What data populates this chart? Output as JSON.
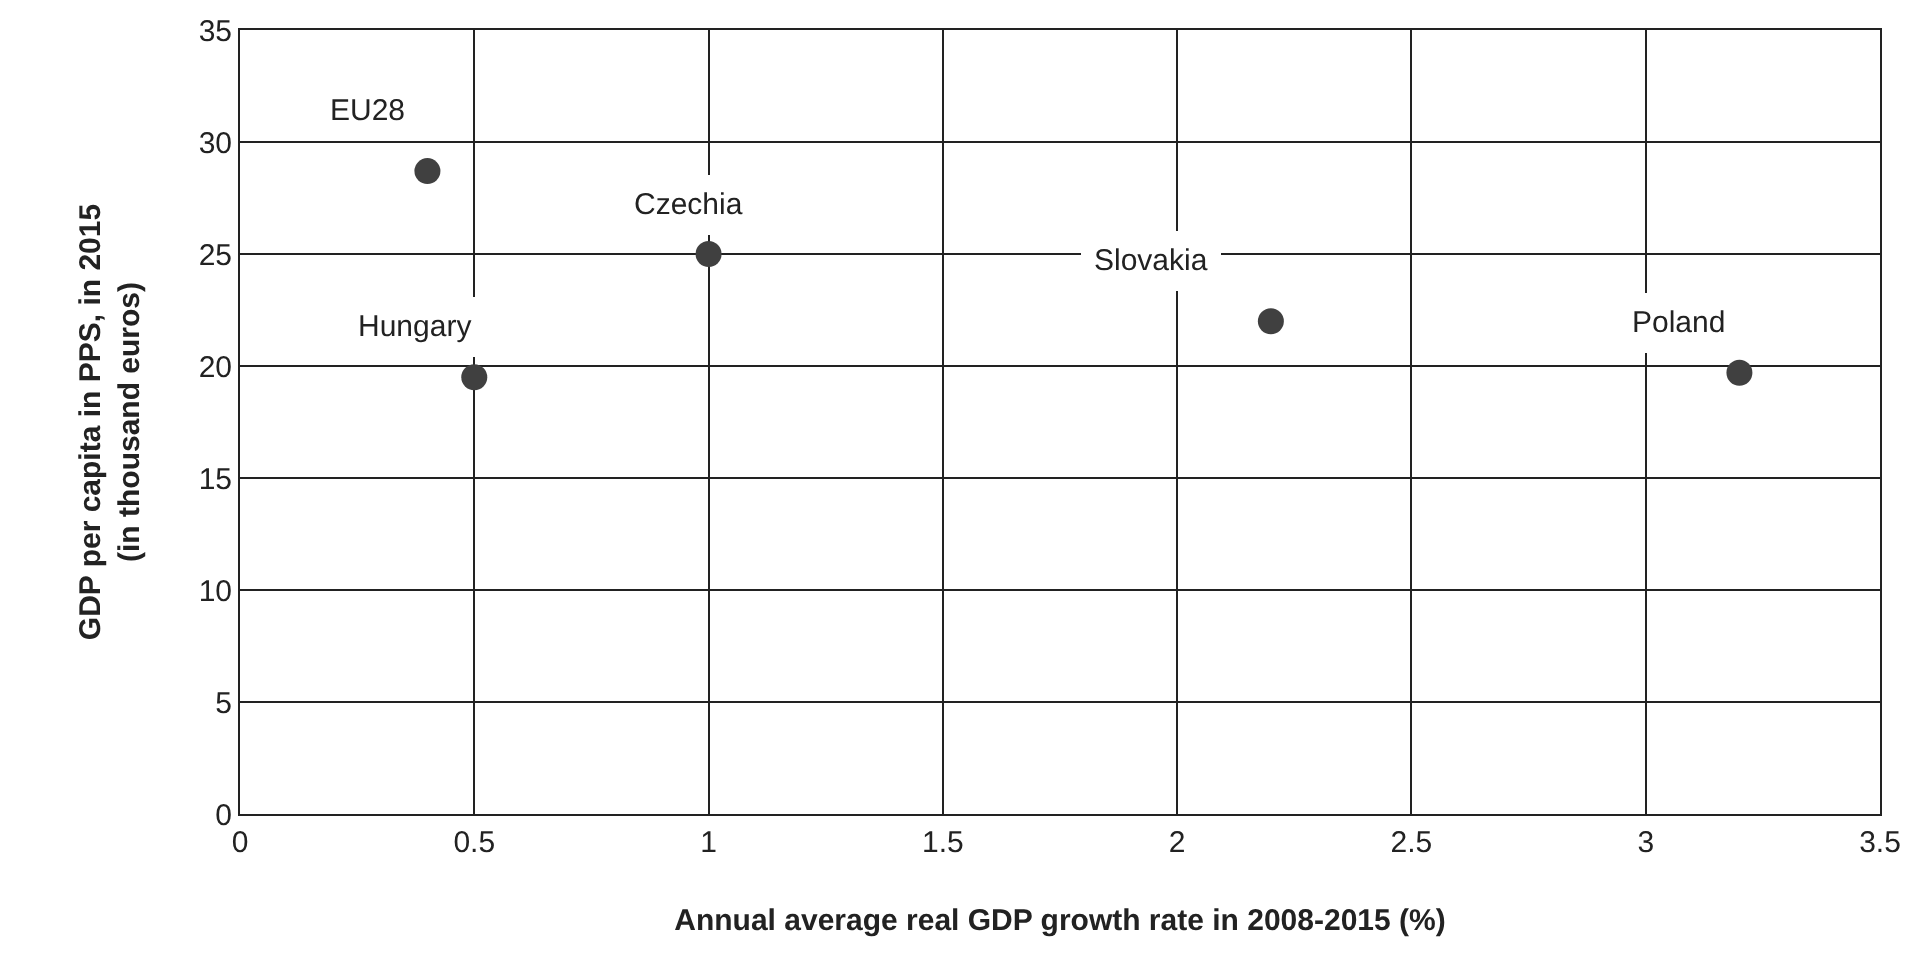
{
  "chart_data": {
    "type": "scatter",
    "xlabel": "Annual average real GDP growth rate in 2008-2015 (%)",
    "ylabel": "GDP per capita in PPS, in 2015\n(in thousand euros)",
    "x": [
      0.4,
      1.0,
      0.5,
      2.2,
      3.2
    ],
    "values": [
      28.7,
      25.0,
      19.5,
      22.0,
      19.7
    ],
    "color": "#404040",
    "marker": "circle",
    "annotations": [
      {
        "text": "EU28",
        "x": 0.4,
        "y": 28.7
      },
      {
        "text": "Czechia",
        "x": 1.0,
        "y": 25.0
      },
      {
        "text": "Hungary",
        "x": 0.5,
        "y": 19.5
      },
      {
        "text": "Slovakia",
        "x": 2.2,
        "y": 22.0
      },
      {
        "text": "Poland",
        "x": 3.2,
        "y": 19.7
      }
    ],
    "xlim": [
      0,
      3.5
    ],
    "xticks": [
      0,
      0.5,
      1,
      1.5,
      2,
      2.5,
      3,
      3.5
    ],
    "ylim": [
      0,
      35
    ],
    "yticks": [
      0,
      5,
      10,
      15,
      20,
      25,
      30,
      35
    ],
    "grid": true
  }
}
